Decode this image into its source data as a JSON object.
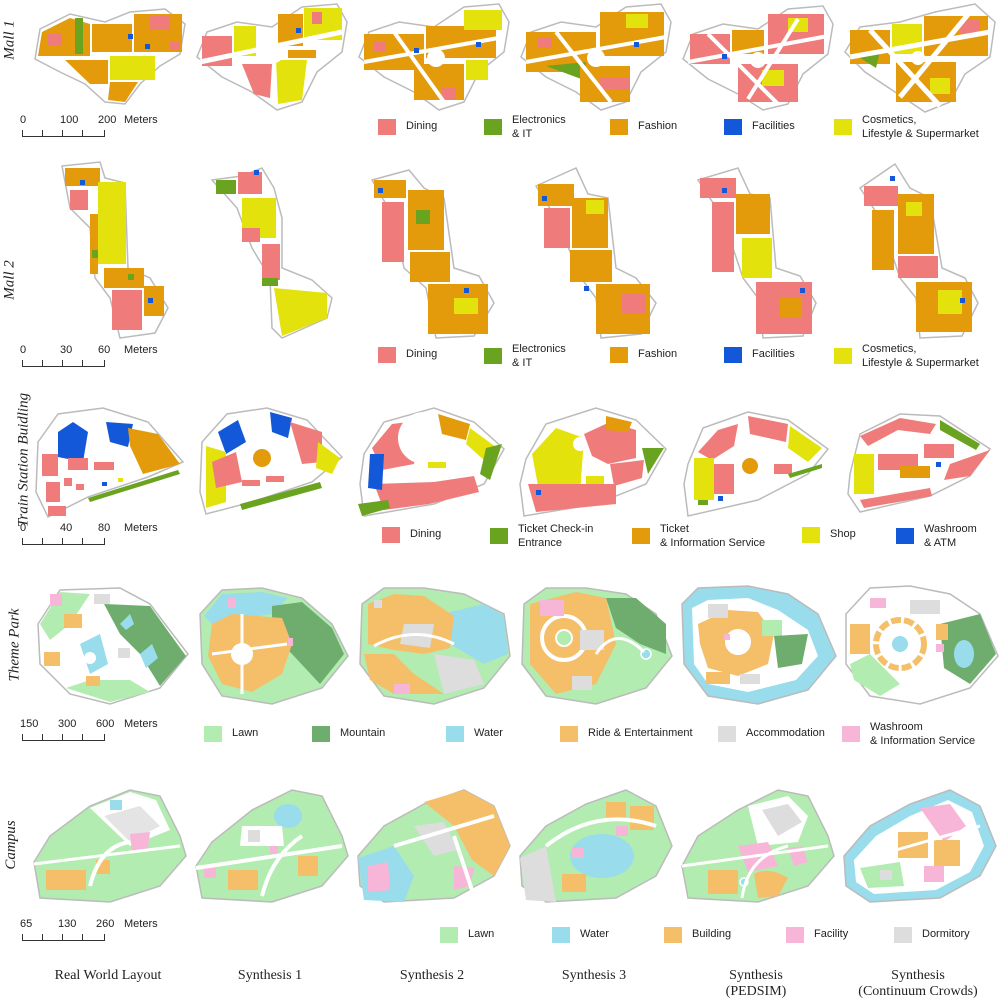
{
  "colors": {
    "dining": "#f07b7b",
    "electronics": "#6aa31f",
    "fashion": "#e39b0b",
    "facilities": "#1358d8",
    "cosmetics": "#e4e20c",
    "lawn": "#b2ecb0",
    "mountain": "#6fad6f",
    "water": "#99dcec",
    "ride": "#f4bf68",
    "accommodation": "#dddddd",
    "washroom_info": "#f7b5d8",
    "building": "#f4bf68",
    "facility": "#f7b5d8",
    "dormitory": "#dddddd"
  },
  "columns": [
    "Real World Layout",
    "Synthesis 1",
    "Synthesis 2",
    "Synthesis 3",
    "Synthesis\n(PEDSIM)",
    "Synthesis\n(Continuum Crowds)"
  ],
  "rows": [
    {
      "id": "mall1",
      "label": "Mall 1",
      "scale": [
        "0",
        "100",
        "200",
        "Meters"
      ],
      "legend": [
        {
          "label": "Dining",
          "color": "#f07b7b"
        },
        {
          "label": "Electronics\n& IT",
          "color": "#6aa31f"
        },
        {
          "label": "Fashion",
          "color": "#e39b0b"
        },
        {
          "label": "Facilities",
          "color": "#1358d8"
        },
        {
          "label": "Cosmetics,\nLifestyle & Supermarket",
          "color": "#e4e20c"
        }
      ]
    },
    {
      "id": "mall2",
      "label": "Mall 2",
      "scale": [
        "0",
        "30",
        "60",
        "Meters"
      ],
      "legend": [
        {
          "label": "Dining",
          "color": "#f07b7b"
        },
        {
          "label": "Electronics\n& IT",
          "color": "#6aa31f"
        },
        {
          "label": "Fashion",
          "color": "#e39b0b"
        },
        {
          "label": "Facilities",
          "color": "#1358d8"
        },
        {
          "label": "Cosmetics,\nLifestyle & Supermarket",
          "color": "#e4e20c"
        }
      ]
    },
    {
      "id": "train",
      "label": "Train Station Buidling",
      "scale": [
        "0",
        "40",
        "80",
        "Meters"
      ],
      "legend": [
        {
          "label": "Dining",
          "color": "#f07b7b"
        },
        {
          "label": "Ticket Check-in\nEntrance",
          "color": "#6aa31f"
        },
        {
          "label": "Ticket\n& Information Service",
          "color": "#e39b0b"
        },
        {
          "label": "Shop",
          "color": "#e4e20c"
        },
        {
          "label": "Washroom\n& ATM",
          "color": "#1358d8"
        }
      ]
    },
    {
      "id": "theme",
      "label": "Theme Park",
      "scale": [
        "150",
        "300",
        "600",
        "Meters"
      ],
      "legend": [
        {
          "label": "Lawn",
          "color": "#b2ecb0"
        },
        {
          "label": "Mountain",
          "color": "#6fad6f"
        },
        {
          "label": "Water",
          "color": "#99dcec"
        },
        {
          "label": "Ride & Entertainment",
          "color": "#f4bf68"
        },
        {
          "label": "Accommodation",
          "color": "#dddddd"
        },
        {
          "label": "Washroom\n& Information Service",
          "color": "#f7b5d8"
        }
      ]
    },
    {
      "id": "campus",
      "label": "Campus",
      "scale": [
        "65",
        "130",
        "260",
        "Meters"
      ],
      "legend": [
        {
          "label": "Lawn",
          "color": "#b2ecb0"
        },
        {
          "label": "Water",
          "color": "#99dcec"
        },
        {
          "label": "Building",
          "color": "#f4bf68"
        },
        {
          "label": "Facility",
          "color": "#f7b5d8"
        },
        {
          "label": "Dormitory",
          "color": "#dddddd"
        }
      ]
    }
  ]
}
